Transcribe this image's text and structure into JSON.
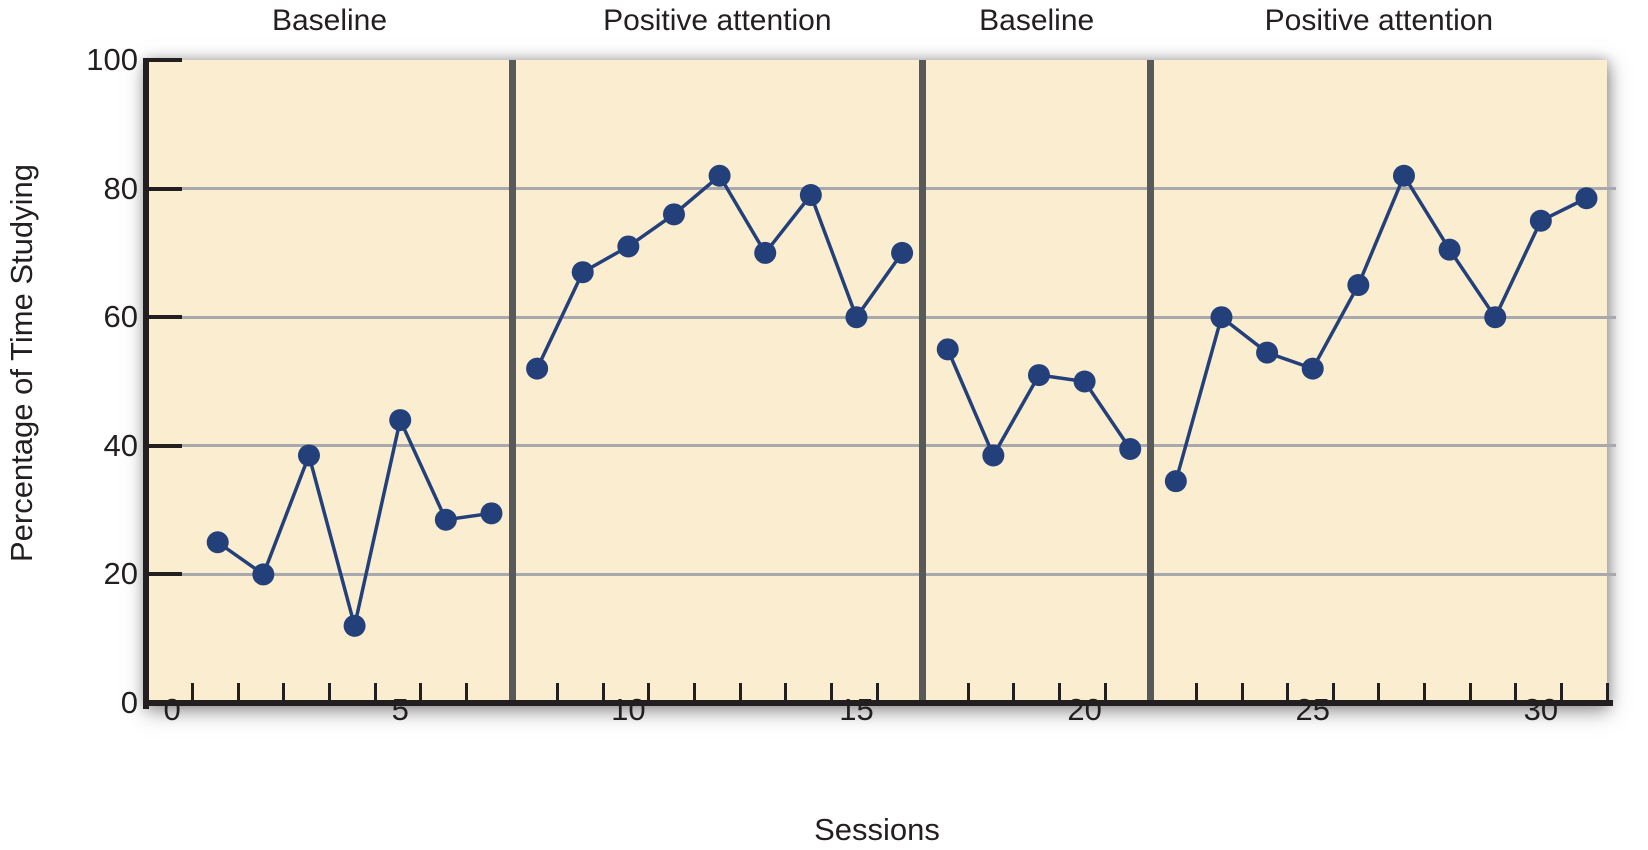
{
  "figure": {
    "background": "#FFFFFF",
    "plot_background": "#FBEDCF",
    "axis_color": "#231F20",
    "gridline_color": "#A7A9AC",
    "divider_color": "#58595B",
    "series_color": "#24407A",
    "text_color": "#231F20"
  },
  "chart_data": {
    "type": "line",
    "title": "",
    "xlabel": "Sessions",
    "ylabel": "Percentage of Time Studying",
    "xlim": [
      -0.55,
      31.45
    ],
    "ylim": [
      0,
      100
    ],
    "grid": "horizontal-only",
    "legend": "none",
    "ytick_values": [
      0,
      20,
      40,
      60,
      80,
      100
    ],
    "gridline_values": [
      20,
      40,
      60,
      80
    ],
    "xtick_label_values": [
      0,
      5,
      10,
      15,
      20,
      25,
      30
    ],
    "minor_xtick_start": 0.45,
    "minor_xtick_step": 1,
    "minor_xtick_count": 32,
    "phase_divider_positions": [
      7.45,
      16.45,
      21.45
    ],
    "phase_changes_after_sessions": [
      7,
      16,
      21
    ],
    "marker": "filled-circle",
    "phases": [
      {
        "label": "Baseline",
        "sessions": [
          1,
          2,
          3,
          4,
          5,
          6,
          7
        ],
        "values": [
          25,
          20,
          38.5,
          12,
          44,
          28.5,
          29.5
        ]
      },
      {
        "label": "Positive attention",
        "sessions": [
          8,
          9,
          10,
          11,
          12,
          13,
          14,
          15,
          16
        ],
        "values": [
          52,
          67,
          71,
          76,
          82,
          70,
          79,
          60,
          70
        ]
      },
      {
        "label": "Baseline",
        "sessions": [
          17,
          18,
          19,
          20,
          21
        ],
        "values": [
          55,
          38.5,
          51,
          50,
          39.5
        ]
      },
      {
        "label": "Positive attention",
        "sessions": [
          22,
          23,
          24,
          25,
          26,
          27,
          28,
          29,
          30,
          31
        ],
        "values": [
          34.5,
          60,
          54.5,
          52,
          65,
          82,
          70.5,
          60,
          75,
          78.5
        ]
      }
    ]
  }
}
